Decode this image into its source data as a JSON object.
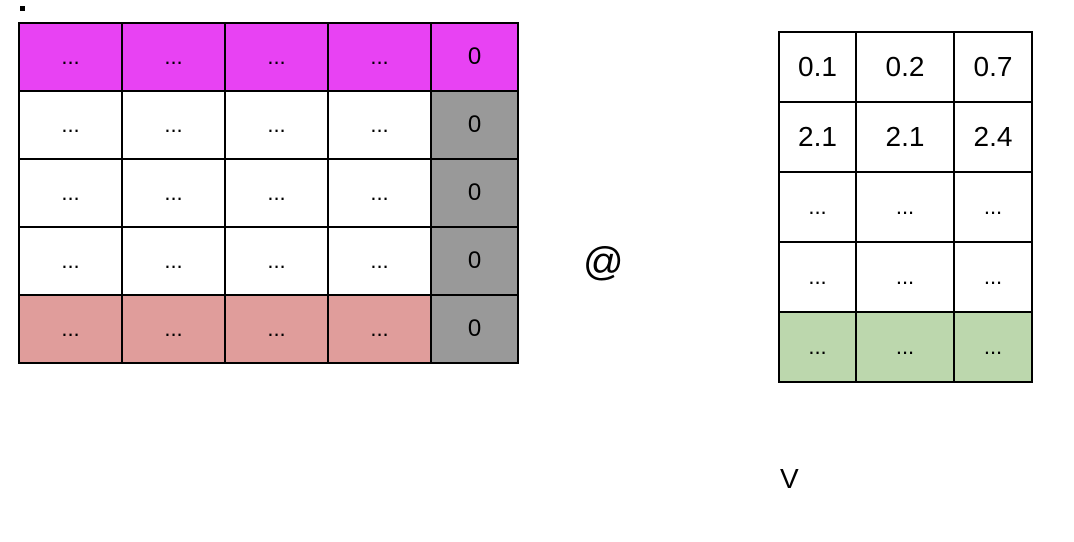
{
  "colors": {
    "highlight_row_magenta": "#e842f3",
    "highlight_row_rose": "#e09d9b",
    "masked_column_gray": "#999999",
    "highlight_row_green": "#bcd7ad",
    "cell_white": "#ffffff",
    "border": "#000000"
  },
  "left_matrix": {
    "rows": [
      {
        "highlight": "magenta",
        "cells": [
          "...",
          "...",
          "...",
          "...",
          "0"
        ]
      },
      {
        "highlight": "none",
        "cells": [
          "...",
          "...",
          "...",
          "...",
          "0"
        ]
      },
      {
        "highlight": "none",
        "cells": [
          "...",
          "...",
          "...",
          "...",
          "0"
        ]
      },
      {
        "highlight": "none",
        "cells": [
          "...",
          "...",
          "...",
          "...",
          "0"
        ]
      },
      {
        "highlight": "rose",
        "cells": [
          "...",
          "...",
          "...",
          "...",
          "0"
        ]
      }
    ]
  },
  "operator": "@",
  "right_matrix": {
    "rows": [
      {
        "highlight": "none",
        "cells": [
          "0.1",
          "0.2",
          "0.7"
        ]
      },
      {
        "highlight": "none",
        "cells": [
          "2.1",
          "2.1",
          "2.4"
        ]
      },
      {
        "highlight": "none",
        "cells": [
          "...",
          "...",
          "..."
        ]
      },
      {
        "highlight": "none",
        "cells": [
          "...",
          "...",
          "..."
        ]
      },
      {
        "highlight": "green",
        "cells": [
          "...",
          "...",
          "..."
        ]
      }
    ]
  },
  "right_matrix_label": "V"
}
